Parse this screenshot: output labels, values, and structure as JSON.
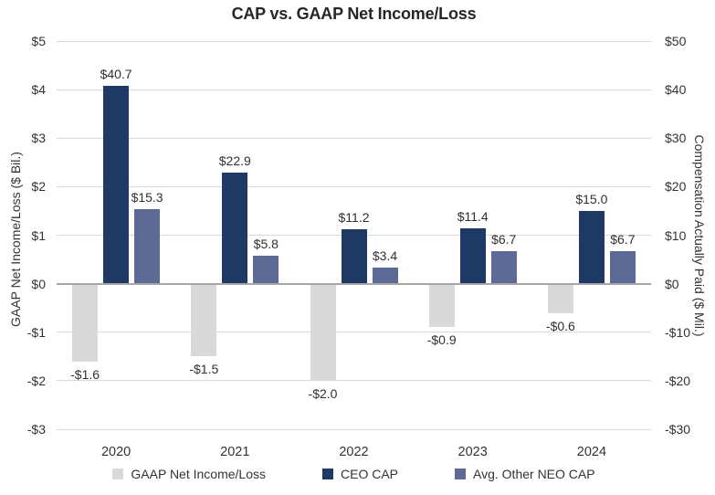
{
  "chart_data": {
    "type": "bar",
    "title": "CAP vs. GAAP Net Income/Loss",
    "categories": [
      "2020",
      "2021",
      "2022",
      "2023",
      "2024"
    ],
    "series": [
      {
        "name": "GAAP Net Income/Loss",
        "key": "gaap-net-income-loss",
        "axis": "left",
        "color": "#d9d9d9",
        "values": [
          -1.6,
          -1.5,
          -2.0,
          -0.9,
          -0.6
        ],
        "labels": [
          "-$1.6",
          "-$1.5",
          "-$2.0",
          "-$0.9",
          "-$0.6"
        ]
      },
      {
        "name": "CEO CAP",
        "key": "ceo-cap",
        "axis": "right",
        "color": "#1e3a64",
        "values": [
          40.7,
          22.9,
          11.2,
          11.4,
          15.0
        ],
        "labels": [
          "$40.7",
          "$22.9",
          "$11.2",
          "$11.4",
          "$15.0"
        ]
      },
      {
        "name": "Avg. Other NEO CAP",
        "key": "avg-other-neo-cap",
        "axis": "right",
        "color": "#5e6a96",
        "values": [
          15.3,
          5.8,
          3.4,
          6.7,
          6.7
        ],
        "labels": [
          "$15.3",
          "$5.8",
          "$3.4",
          "$6.7",
          "$6.7"
        ]
      }
    ],
    "left_axis": {
      "title": "GAAP Net Income/Loss ($ Bil.)",
      "min": -3,
      "max": 5,
      "step": 1,
      "ticks": [
        "$5",
        "$4",
        "$3",
        "$2",
        "$1",
        "$0",
        "-$1",
        "-$2",
        "-$3"
      ]
    },
    "right_axis": {
      "title": "Compensation Actually Paid ($ Mil.)",
      "min": -30,
      "max": 50,
      "step": 10,
      "ticks": [
        "$50",
        "$40",
        "$30",
        "$20",
        "$10",
        "$0",
        "-$10",
        "-$20",
        "-$30"
      ]
    },
    "grid": true,
    "legend_position": "bottom",
    "colors": {
      "gridline": "#d9d9d9",
      "zero_line": "#a6a6a6",
      "text": "#333333",
      "title_text": "#262626"
    }
  }
}
